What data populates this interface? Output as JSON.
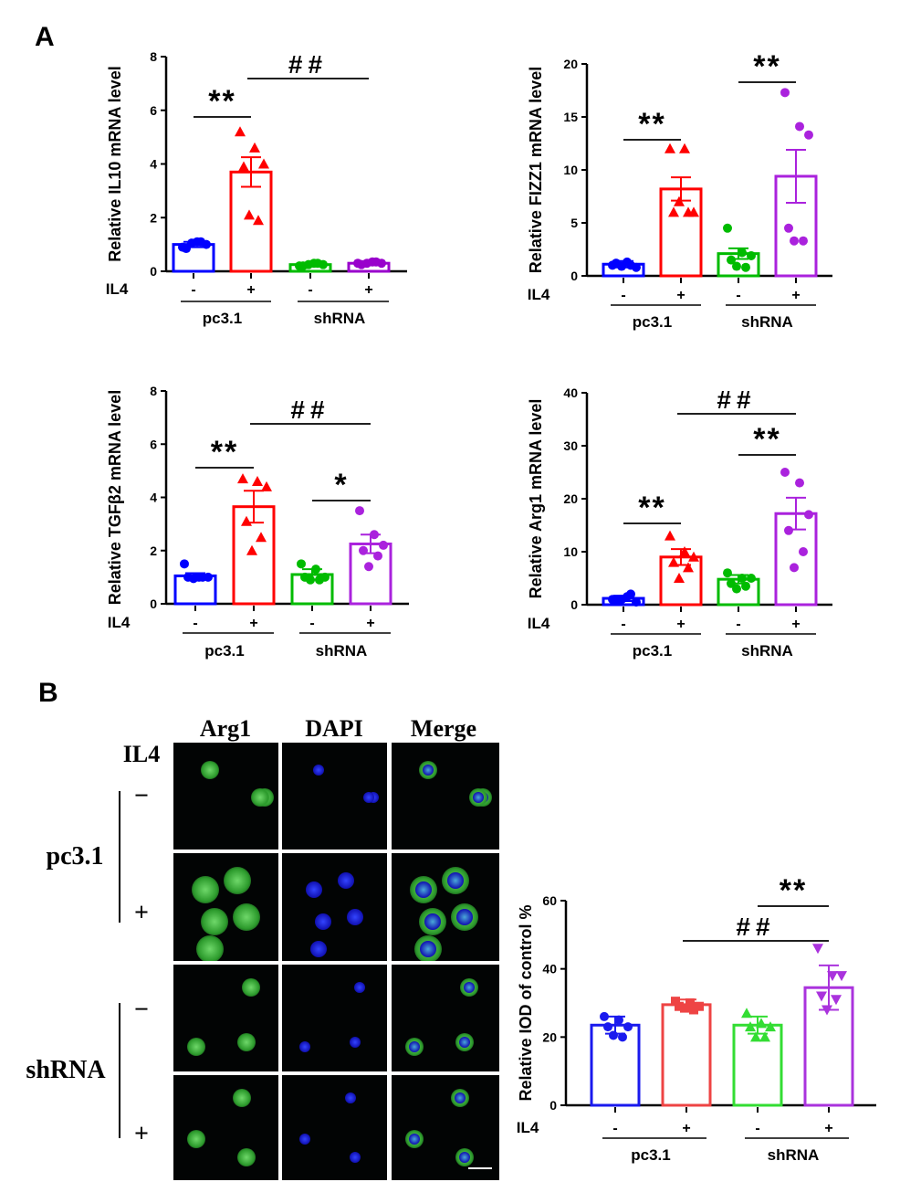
{
  "panel_labels": {
    "a": "A",
    "b": "B"
  },
  "micrograph": {
    "columns": [
      "Arg1",
      "DAPI",
      "Merge"
    ],
    "il4_label": "IL4",
    "row_signs": [
      "−",
      "+",
      "−",
      "+"
    ],
    "groups": [
      "pc3.1",
      "shRNA"
    ]
  },
  "chart_data": [
    {
      "type": "bar",
      "id": "il10",
      "ylabel": "Relative IL10 mRNA level",
      "ylim": [
        0,
        8
      ],
      "yticks": [
        "0",
        "2",
        "4",
        "6",
        "8"
      ],
      "xrow_label": "IL4",
      "signs": [
        "-",
        "+",
        "-",
        "+"
      ],
      "groups": [
        "pc3.1",
        "shRNA"
      ],
      "colors": [
        "#0000ff",
        "#ff0000",
        "#00bb00",
        "#9900cc"
      ],
      "markers": [
        "circle",
        "triangle",
        "circle",
        "circle"
      ],
      "values": [
        1.0,
        3.7,
        0.25,
        0.3
      ],
      "errors": [
        0.1,
        0.55,
        0.05,
        0.05
      ],
      "points": [
        [
          0.9,
          1.1,
          1.0,
          0.85,
          1.1,
          1.05
        ],
        [
          5.2,
          4.6,
          4.0,
          3.9,
          1.9,
          2.1
        ],
        [
          0.2,
          0.3,
          0.25,
          0.2,
          0.3,
          0.25
        ],
        [
          0.3,
          0.35,
          0.3,
          0.25,
          0.35,
          0.3
        ]
      ],
      "significance": [
        {
          "from": 0,
          "to": 1,
          "label": "**"
        },
        {
          "from": 1,
          "to": 3,
          "label": "##"
        }
      ]
    },
    {
      "type": "bar",
      "id": "fizz1",
      "ylabel": "Relative FIZZ1 mRNA level",
      "ylim": [
        0,
        20
      ],
      "yticks": [
        "0",
        "5",
        "10",
        "15",
        "20"
      ],
      "xrow_label": "IL4",
      "signs": [
        "-",
        "+",
        "-",
        "+"
      ],
      "groups": [
        "pc3.1",
        "shRNA"
      ],
      "colors": [
        "#0000ff",
        "#ff0000",
        "#00bb00",
        "#aa22dd"
      ],
      "markers": [
        "circle",
        "triangle",
        "circle",
        "circle"
      ],
      "values": [
        1.1,
        8.2,
        2.1,
        9.4
      ],
      "errors": [
        0.3,
        1.1,
        0.5,
        2.5
      ],
      "points": [
        [
          1.0,
          1.3,
          0.8,
          1.2,
          1.0,
          0.9
        ],
        [
          12,
          12,
          6,
          6,
          6,
          7
        ],
        [
          4.5,
          2.2,
          1.9,
          1.5,
          0.8,
          0.9
        ],
        [
          17.3,
          14.1,
          13.3,
          4.5,
          3.3,
          3.3
        ]
      ],
      "significance": [
        {
          "from": 0,
          "to": 1,
          "label": "**"
        },
        {
          "from": 2,
          "to": 3,
          "label": "**"
        }
      ]
    },
    {
      "type": "bar",
      "id": "tgfb2",
      "ylabel": "Relative TGFβ2 mRNA level",
      "ylim": [
        0,
        8
      ],
      "yticks": [
        "0",
        "2",
        "4",
        "6",
        "8"
      ],
      "xrow_label": "IL4",
      "signs": [
        "-",
        "+",
        "-",
        "+"
      ],
      "groups": [
        "pc3.1",
        "shRNA"
      ],
      "colors": [
        "#0000ff",
        "#ff0000",
        "#00bb00",
        "#aa22dd"
      ],
      "markers": [
        "circle",
        "triangle",
        "circle",
        "circle"
      ],
      "values": [
        1.05,
        3.65,
        1.1,
        2.25
      ],
      "errors": [
        0.1,
        0.6,
        0.2,
        0.35
      ],
      "points": [
        [
          1.5,
          1.0,
          1.0,
          1.0,
          1.0,
          0.95
        ],
        [
          4.7,
          4.6,
          4.4,
          3.1,
          2.5,
          2.0
        ],
        [
          1.5,
          1.3,
          1.0,
          1.0,
          0.9,
          0.9
        ],
        [
          3.5,
          2.6,
          2.2,
          2.0,
          1.8,
          1.4
        ]
      ],
      "significance": [
        {
          "from": 0,
          "to": 1,
          "label": "**"
        },
        {
          "from": 2,
          "to": 3,
          "label": "*"
        },
        {
          "from": 1,
          "to": 3,
          "label": "##"
        }
      ]
    },
    {
      "type": "bar",
      "id": "arg1",
      "ylabel": "Relative Arg1 mRNA level",
      "ylim": [
        0,
        40
      ],
      "yticks": [
        "0",
        "10",
        "20",
        "30",
        "40"
      ],
      "xrow_label": "IL4",
      "signs": [
        "-",
        "+",
        "-",
        "+"
      ],
      "groups": [
        "pc3.1",
        "shRNA"
      ],
      "colors": [
        "#0000ff",
        "#ff0000",
        "#00bb00",
        "#aa22dd"
      ],
      "markers": [
        "circle",
        "triangle",
        "circle",
        "circle"
      ],
      "values": [
        1.2,
        9.0,
        4.8,
        17.2
      ],
      "errors": [
        0.5,
        1.5,
        0.8,
        3.0
      ],
      "points": [
        [
          1.0,
          1.5,
          0.5,
          0.8,
          2.0,
          1.0
        ],
        [
          13,
          10,
          9,
          8,
          7,
          5
        ],
        [
          6,
          5,
          5,
          4,
          3.5,
          3
        ],
        [
          25,
          23,
          17,
          14,
          10,
          7
        ]
      ],
      "significance": [
        {
          "from": 0,
          "to": 1,
          "label": "**"
        },
        {
          "from": 2,
          "to": 3,
          "label": "**"
        },
        {
          "from": 1,
          "to": 3,
          "label": "##"
        }
      ]
    },
    {
      "type": "bar",
      "id": "iod",
      "ylabel": "Relative IOD of control %",
      "ylim": [
        0,
        60
      ],
      "yticks": [
        "0",
        "20",
        "40",
        "60"
      ],
      "xrow_label": "IL4",
      "signs": [
        "-",
        "+",
        "-",
        "+"
      ],
      "groups": [
        "pc3.1",
        "shRNA"
      ],
      "colors": [
        "#1a1aee",
        "#ee4444",
        "#33dd33",
        "#aa33dd"
      ],
      "markers": [
        "circle",
        "square",
        "triangle",
        "triangle-down"
      ],
      "values": [
        23.5,
        29.5,
        23.5,
        34.5
      ],
      "errors": [
        2.5,
        1.5,
        2.5,
        6.5
      ],
      "points": [
        [
          26,
          25,
          23,
          23,
          20,
          20.5
        ],
        [
          30.5,
          30,
          29,
          29,
          28,
          28.5
        ],
        [
          27,
          24,
          23,
          23,
          20,
          20
        ],
        [
          46,
          38,
          38,
          32,
          31,
          28
        ]
      ],
      "significance": [
        {
          "from": 1,
          "to": 3,
          "label": "##"
        },
        {
          "from": 2,
          "to": 3,
          "label": "**"
        }
      ]
    }
  ]
}
